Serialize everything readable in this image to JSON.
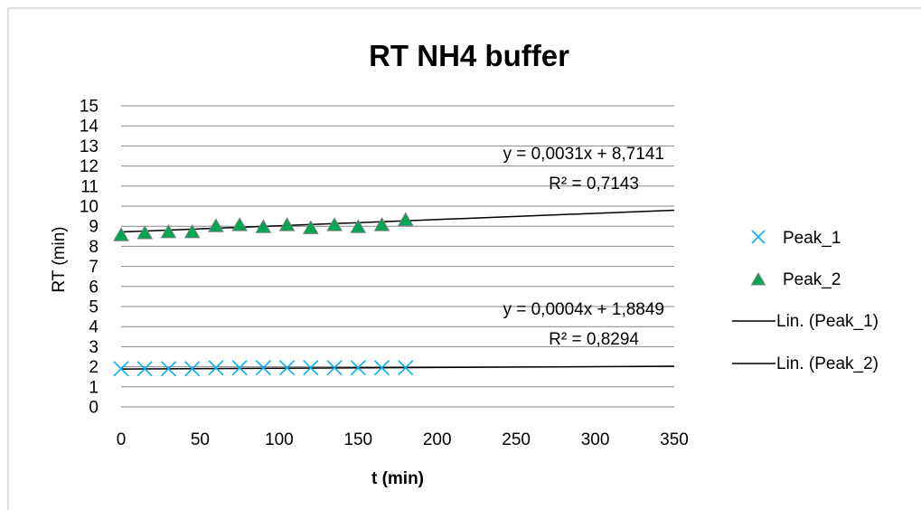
{
  "chart_data": {
    "type": "scatter",
    "title": "RT NH4 buffer",
    "xlabel": "t (min)",
    "ylabel": "RT (min)",
    "xlim": [
      0,
      350
    ],
    "ylim": [
      0,
      15
    ],
    "xticks": [
      "0",
      "50",
      "100",
      "150",
      "200",
      "250",
      "300",
      "350"
    ],
    "yticks": [
      "0",
      "1",
      "2",
      "3",
      "4",
      "5",
      "6",
      "7",
      "8",
      "9",
      "10",
      "11",
      "12",
      "13",
      "14",
      "15"
    ],
    "grid": "horizontal",
    "legend_position": "right",
    "series": [
      {
        "name": "Peak_1",
        "marker": "x",
        "color": "#00B0F0",
        "x": [
          0,
          15,
          30,
          45,
          60,
          75,
          90,
          105,
          120,
          135,
          150,
          165,
          180
        ],
        "y": [
          1.9,
          1.9,
          1.9,
          1.9,
          1.95,
          1.95,
          1.95,
          1.95,
          1.95,
          1.95,
          1.95,
          1.95,
          1.95
        ]
      },
      {
        "name": "Peak_2",
        "marker": "triangle",
        "color": "#00A651",
        "x": [
          0,
          15,
          30,
          45,
          60,
          75,
          90,
          105,
          120,
          135,
          150,
          165,
          180
        ],
        "y": [
          8.55,
          8.65,
          8.7,
          8.7,
          9.0,
          9.05,
          8.95,
          9.05,
          8.9,
          9.05,
          8.95,
          9.05,
          9.3
        ]
      }
    ],
    "trendlines": [
      {
        "name": "Lin. (Peak_1)",
        "of": "Peak_1",
        "slope": 0.0004,
        "intercept": 1.8849,
        "equation": "y = 0,0004x + 1,8849",
        "r2": "R² = 0,8294",
        "color": "#000000"
      },
      {
        "name": "Lin. (Peak_2)",
        "of": "Peak_2",
        "slope": 0.0031,
        "intercept": 8.7141,
        "equation": "y = 0,0031x + 8,7141",
        "r2": "R² = 0,7143",
        "color": "#000000"
      }
    ]
  },
  "legend": {
    "items": [
      {
        "label": "Peak_1",
        "kind": "x-marker"
      },
      {
        "label": "Peak_2",
        "kind": "triangle-marker"
      },
      {
        "label": "Lin. (Peak_1)",
        "kind": "line"
      },
      {
        "label": "Lin. (Peak_2)",
        "kind": "line"
      }
    ]
  }
}
